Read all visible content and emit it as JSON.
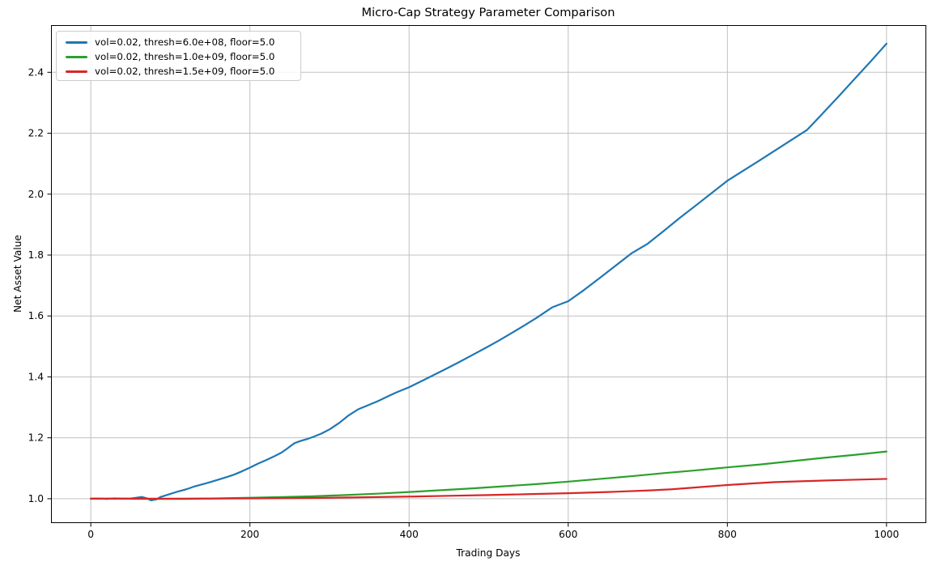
{
  "chart": {
    "title": "Micro-Cap Strategy Parameter Comparison",
    "xlabel": "Trading Days",
    "ylabel": "Net Asset Value"
  },
  "chart_data": {
    "type": "line",
    "title": "Micro-Cap Strategy Parameter Comparison",
    "xlabel": "Trading Days",
    "ylabel": "Net Asset Value",
    "xlim": [
      -50,
      1050
    ],
    "ylim": [
      0.92,
      2.555
    ],
    "xticks": [
      0,
      200,
      400,
      600,
      800,
      1000
    ],
    "yticks": [
      1.0,
      1.2,
      1.4,
      1.6,
      1.8,
      2.0,
      2.2,
      2.4
    ],
    "grid": true,
    "grid_color": "#c0c0c0",
    "legend_position": "upper left",
    "series": [
      {
        "id": "thresh-6e08",
        "name": "vol=0.02, thresh=6.0e+08, floor=5.0",
        "color": "#1f77b4",
        "x": [
          0,
          10,
          20,
          30,
          40,
          50,
          58,
          64,
          70,
          76,
          82,
          88,
          94,
          100,
          110,
          120,
          130,
          140,
          150,
          160,
          170,
          180,
          190,
          200,
          210,
          220,
          230,
          240,
          248,
          256,
          264,
          272,
          280,
          290,
          300,
          312,
          324,
          336,
          348,
          360,
          372,
          384,
          400,
          416,
          432,
          448,
          464,
          480,
          496,
          512,
          528,
          544,
          560,
          580,
          600,
          620,
          640,
          660,
          680,
          700,
          720,
          740,
          760,
          780,
          800,
          820,
          840,
          860,
          880,
          900,
          920,
          940,
          960,
          980,
          1000
        ],
        "y": [
          1.0,
          1.0005,
          0.9995,
          1.001,
          1.0,
          1.0005,
          1.0035,
          1.006,
          1.0015,
          0.9945,
          0.9975,
          1.006,
          1.011,
          1.016,
          1.024,
          1.031,
          1.04,
          1.047,
          1.0545,
          1.0625,
          1.0705,
          1.079,
          1.09,
          1.102,
          1.115,
          1.1265,
          1.1385,
          1.152,
          1.167,
          1.1825,
          1.19,
          1.196,
          1.2035,
          1.214,
          1.2275,
          1.2485,
          1.2735,
          1.2935,
          1.3065,
          1.3195,
          1.3345,
          1.349,
          1.366,
          1.3865,
          1.4075,
          1.4285,
          1.45,
          1.4725,
          1.495,
          1.518,
          1.5425,
          1.5675,
          1.5935,
          1.6285,
          1.6485,
          1.6855,
          1.7255,
          1.766,
          1.8065,
          1.8375,
          1.879,
          1.9215,
          1.962,
          2.003,
          2.044,
          2.077,
          2.11,
          2.1435,
          2.177,
          2.2105,
          2.2655,
          2.3215,
          2.3785,
          2.4355,
          2.494
        ]
      },
      {
        "id": "thresh-1e09",
        "name": "vol=0.02, thresh=1.0e+09, floor=5.0",
        "color": "#2ca02c",
        "x": [
          0,
          40,
          80,
          120,
          160,
          200,
          240,
          280,
          320,
          360,
          400,
          440,
          480,
          520,
          560,
          600,
          640,
          680,
          720,
          760,
          800,
          840,
          880,
          920,
          960,
          1000
        ],
        "y": [
          1.0,
          1.0,
          0.9995,
          0.9995,
          1.001,
          1.003,
          1.0055,
          1.008,
          1.012,
          1.0165,
          1.022,
          1.028,
          1.034,
          1.041,
          1.048,
          1.056,
          1.065,
          1.074,
          1.084,
          1.093,
          1.103,
          1.112,
          1.123,
          1.134,
          1.144,
          1.155
        ]
      },
      {
        "id": "thresh-1.5e09",
        "name": "vol=0.02, thresh=1.5e+09, floor=5.0",
        "color": "#d62728",
        "x": [
          0,
          50,
          100,
          150,
          200,
          250,
          300,
          350,
          400,
          450,
          500,
          550,
          600,
          650,
          700,
          730,
          760,
          800,
          830,
          860,
          900,
          940,
          1000
        ],
        "y": [
          1.0,
          1.0,
          1.0,
          1.0005,
          1.001,
          1.002,
          1.003,
          1.005,
          1.007,
          1.0095,
          1.012,
          1.015,
          1.018,
          1.022,
          1.027,
          1.031,
          1.037,
          1.045,
          1.05,
          1.0545,
          1.058,
          1.061,
          1.065
        ]
      }
    ]
  }
}
